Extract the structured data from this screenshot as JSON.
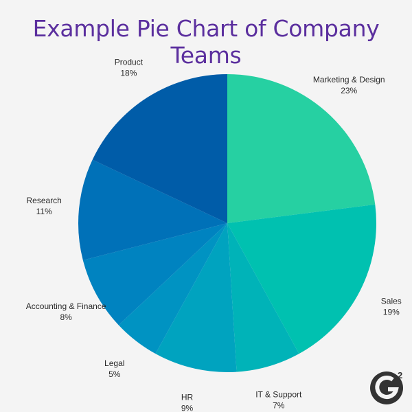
{
  "chart_data": {
    "type": "pie",
    "title": "Example Pie Chart of Company Teams",
    "start_angle_deg": 0,
    "direction": "clockwise",
    "slices": [
      {
        "label": "Marketing & Design",
        "value": 23,
        "display": "23%",
        "color": "#26d0a2"
      },
      {
        "label": "Sales",
        "value": 19,
        "display": "19%",
        "color": "#00c1b0"
      },
      {
        "label": "IT & Support",
        "value": 7,
        "display": "7%",
        "color": "#00b3b8"
      },
      {
        "label": "HR",
        "value": 9,
        "display": "9%",
        "color": "#00a3bf"
      },
      {
        "label": "Legal",
        "value": 5,
        "display": "5%",
        "color": "#0093c2"
      },
      {
        "label": "Accounting & Finance",
        "value": 8,
        "display": "8%",
        "color": "#0083c0"
      },
      {
        "label": "Research",
        "value": 11,
        "display": "11%",
        "color": "#0071b8"
      },
      {
        "label": "Product",
        "value": 18,
        "display": "18%",
        "color": "#005ca8"
      }
    ]
  },
  "logo": {
    "name": "g2-logo",
    "superscript": "2",
    "color": "#333333"
  }
}
